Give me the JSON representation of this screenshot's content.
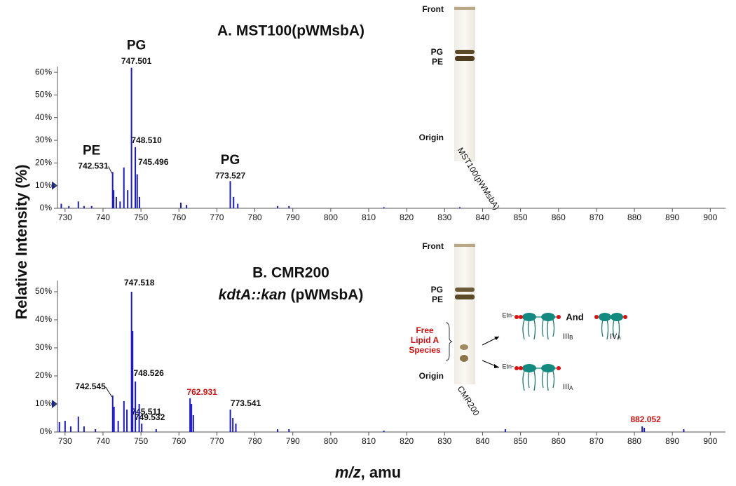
{
  "ylabel": "Relative Intensity (%)",
  "xlabel": [
    "m/z",
    ", amu"
  ],
  "chart_data": [
    {
      "type": "bar",
      "title": "A. MST100(pWMsbA)",
      "color": "#1a1ad0",
      "xlim": [
        728,
        904
      ],
      "ylim": [
        0,
        62.5
      ],
      "xticks": [
        730,
        740,
        750,
        760,
        770,
        780,
        790,
        800,
        810,
        820,
        830,
        840,
        850,
        860,
        870,
        880,
        890,
        900
      ],
      "yticks": [
        {
          "value": 0,
          "label": "0%"
        },
        {
          "value": 10,
          "label": "10%"
        },
        {
          "value": 20,
          "label": "20%"
        },
        {
          "value": 30,
          "label": "30%"
        },
        {
          "value": 40,
          "label": "40%"
        },
        {
          "value": 50,
          "label": "50%"
        },
        {
          "value": 60,
          "label": "60%"
        }
      ],
      "x": [
        729,
        731,
        733.5,
        735,
        737,
        742.531,
        742.8,
        743.5,
        744.5,
        745.496,
        746.5,
        747.501,
        748.51,
        749,
        749.6,
        760.5,
        762,
        773.527,
        774.4,
        775.5,
        786,
        789,
        814,
        834
      ],
      "values": [
        2,
        1,
        3,
        1,
        1,
        16,
        8,
        5,
        3,
        18,
        8,
        62,
        27,
        15,
        5,
        2.5,
        1.5,
        12,
        5,
        2,
        1,
        1,
        0.5,
        0.5
      ],
      "labels": [
        null,
        null,
        null,
        null,
        null,
        "742.531",
        null,
        null,
        null,
        "745.496",
        null,
        "747.501",
        "748.510",
        null,
        null,
        null,
        null,
        "773.527",
        null,
        null,
        null,
        null,
        null,
        null
      ],
      "peak_classes": [
        null,
        null,
        null,
        null,
        null,
        "PE",
        null,
        null,
        null,
        null,
        null,
        "PG",
        null,
        null,
        null,
        null,
        null,
        "PG",
        null,
        null,
        null,
        null,
        null,
        null
      ],
      "inset": {
        "front": "Front",
        "pg": "PG",
        "pe": "PE",
        "origin": "Origin",
        "lane": "MST100(pWMsbA)"
      }
    },
    {
      "type": "bar",
      "title": "B. CMR200",
      "subtitle": [
        "kdtA::kan",
        "(pWMsbA)"
      ],
      "color": "#1a1ad0",
      "xlim": [
        728,
        904
      ],
      "ylim": [
        0,
        54
      ],
      "xticks": [
        730,
        740,
        750,
        760,
        770,
        780,
        790,
        800,
        810,
        820,
        830,
        840,
        850,
        860,
        870,
        880,
        890,
        900
      ],
      "yticks": [
        {
          "value": 0,
          "label": "0%"
        },
        {
          "value": 10,
          "label": "10%"
        },
        {
          "value": 20,
          "label": "20%"
        },
        {
          "value": 30,
          "label": "30%"
        },
        {
          "value": 40,
          "label": "40%"
        },
        {
          "value": 50,
          "label": "50%"
        }
      ],
      "x": [
        728.5,
        730,
        731.5,
        733.5,
        735,
        738,
        742.545,
        742.9,
        744,
        745.511,
        746.3,
        747.518,
        747.8,
        748.526,
        749.532,
        750.2,
        754,
        762.931,
        763.3,
        763.8,
        773.541,
        774.2,
        775,
        786,
        789,
        814,
        846,
        882.052,
        882.6,
        893
      ],
      "values": [
        3.5,
        4,
        2,
        5.5,
        2,
        1,
        13,
        9,
        4,
        11,
        8,
        50,
        36,
        18,
        10,
        3,
        1,
        12,
        10,
        6,
        8,
        5,
        3,
        1,
        1,
        0.5,
        1,
        2,
        1.5,
        1
      ],
      "labels": [
        null,
        null,
        null,
        null,
        null,
        null,
        "742.545",
        null,
        null,
        "745.511",
        null,
        "747.518",
        null,
        "748.526",
        "749.532",
        null,
        null,
        "762.931",
        null,
        null,
        "773.541",
        null,
        null,
        null,
        null,
        null,
        null,
        "882.052",
        null,
        null
      ],
      "label_colors": [
        null,
        null,
        null,
        null,
        null,
        null,
        null,
        null,
        null,
        null,
        null,
        null,
        null,
        null,
        null,
        null,
        null,
        "#d01010",
        null,
        null,
        null,
        null,
        null,
        null,
        null,
        null,
        null,
        "#d01010",
        null,
        null
      ],
      "inset": {
        "front": "Front",
        "pg": "PG",
        "pe": "PE",
        "free": [
          "Free",
          "Lipid A",
          "Species"
        ],
        "origin": "Origin",
        "lane": "CMR200",
        "etn": [
          "Etn-",
          "Etn-"
        ],
        "and": "And",
        "species": [
          [
            "III",
            "B"
          ],
          [
            "IV",
            "A"
          ],
          [
            "III",
            "A"
          ]
        ]
      }
    }
  ]
}
